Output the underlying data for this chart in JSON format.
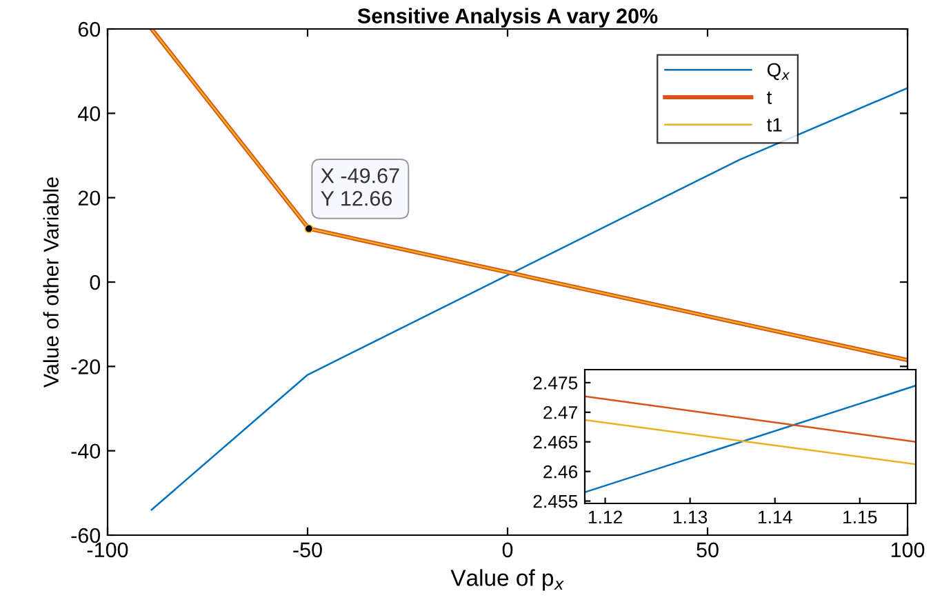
{
  "chart_data": [
    {
      "type": "line",
      "title": "Sensitive Analysis A vary 20%",
      "xlabel": "Value of p$_{x}$",
      "ylabel": "Value of other Variable",
      "xlim": [
        -100,
        100
      ],
      "xticks": [
        -100,
        -50,
        0,
        50,
        100
      ],
      "ylim": [
        -60,
        60
      ],
      "yticks": [
        -60,
        -40,
        -20,
        0,
        20,
        40,
        60
      ],
      "grid": false,
      "legend": "top right",
      "series": [
        {
          "name": "Q$_{x}$",
          "color": "#0072bd",
          "x": [
            -89,
            -50,
            58,
            100
          ],
          "values": [
            -54,
            -22,
            29,
            46
          ]
        },
        {
          "name": "t",
          "color": "#d95319",
          "x": [
            -89,
            -49.67,
            100
          ],
          "values": [
            60,
            12.66,
            -18.5
          ]
        },
        {
          "name": "t1",
          "color": "#edb120",
          "x": [
            -89,
            -49.67,
            100
          ],
          "values": [
            60,
            12.66,
            -18.5
          ]
        }
      ],
      "annotations": [
        {
          "text": "X -49.67\nY 12.66",
          "x": -49.67,
          "y": 12.66
        }
      ]
    },
    {
      "type": "line",
      "xlim": [
        1.1176,
        1.1566
      ],
      "xticks": [
        1.12,
        1.13,
        1.14,
        1.15
      ],
      "ylim": [
        2.4546,
        2.4772
      ],
      "yticks": [
        2.455,
        2.46,
        2.465,
        2.47,
        2.475
      ],
      "grid": false,
      "series": [
        {
          "color": "#0072bd",
          "x": [
            1.1176,
            1.1566
          ],
          "values": [
            2.4565,
            2.4745
          ]
        },
        {
          "color": "#d95319",
          "x": [
            1.1176,
            1.1566
          ],
          "values": [
            2.4727,
            2.465
          ]
        },
        {
          "color": "#edb120",
          "x": [
            1.1176,
            1.1566
          ],
          "values": [
            2.4687,
            2.4612
          ]
        }
      ]
    }
  ]
}
